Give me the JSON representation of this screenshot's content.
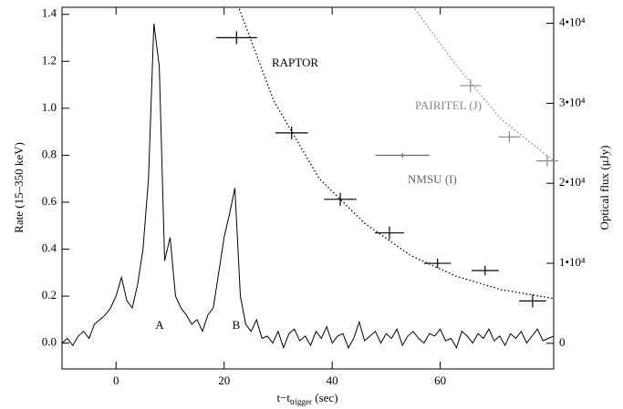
{
  "chart_data": {
    "type": "line",
    "xlabel": {
      "main": "t−t",
      "sub": "trigger",
      "unit": " (sec)"
    },
    "ylabel": "Rate (15–350 keV)",
    "y2label": "Optical flux (μJy)",
    "xlim": [
      -10,
      81
    ],
    "ylim": [
      -0.11,
      1.43
    ],
    "y2lim": [
      -3200,
      42000
    ],
    "xticks": [
      0,
      20,
      40,
      60
    ],
    "yticks": [
      {
        "value": 0,
        "label": "0.0"
      },
      0.2,
      0.4,
      0.6,
      0.8,
      {
        "value": 1,
        "label": "1.0"
      },
      1.2,
      1.4
    ],
    "y2ticks": [
      0,
      {
        "value": 10000,
        "label": "1•10⁴"
      },
      {
        "value": 20000,
        "label": "2•10⁴"
      },
      {
        "value": 30000,
        "label": "3•10⁴"
      },
      {
        "value": 40000,
        "label": "4•10⁴"
      }
    ],
    "annotations": [
      "A",
      "B"
    ],
    "lightcurve": {
      "color": "#000000",
      "x": [
        -10,
        -9,
        -8,
        -7,
        -6,
        -5,
        -4,
        -3,
        -2,
        -1,
        0,
        1,
        2,
        3,
        4,
        5,
        6,
        7,
        8,
        9,
        10,
        11,
        12,
        13,
        14,
        15,
        16,
        17,
        18,
        19,
        20,
        21,
        22,
        23,
        24,
        25,
        26,
        27,
        28,
        29,
        30,
        31,
        32,
        33,
        34,
        35,
        36,
        37,
        38,
        39,
        40,
        41,
        42,
        43,
        44,
        45,
        46,
        47,
        48,
        49,
        50,
        51,
        52,
        53,
        54,
        55,
        56,
        57,
        58,
        59,
        60,
        61,
        62,
        63,
        64,
        65,
        66,
        67,
        68,
        69,
        70,
        71,
        72,
        73,
        74,
        75,
        76,
        77,
        78,
        79,
        80,
        81
      ],
      "values": [
        0.0,
        0.02,
        -0.01,
        0.03,
        0.05,
        0.02,
        0.08,
        0.1,
        0.12,
        0.15,
        0.2,
        0.28,
        0.18,
        0.15,
        0.25,
        0.4,
        0.7,
        1.36,
        1.18,
        0.35,
        0.45,
        0.2,
        0.15,
        0.12,
        0.08,
        0.1,
        0.05,
        0.12,
        0.15,
        0.3,
        0.45,
        0.55,
        0.66,
        0.2,
        0.08,
        0.05,
        0.1,
        0.02,
        0.03,
        0.0,
        0.05,
        -0.02,
        0.04,
        0.06,
        0.01,
        0.03,
        -0.01,
        0.05,
        0.02,
        0.07,
        0.0,
        0.03,
        0.04,
        -0.02,
        0.02,
        0.09,
        0.01,
        0.03,
        0.05,
        0.0,
        0.04,
        0.02,
        0.06,
        -0.01,
        0.03,
        0.05,
        0.02,
        0.0,
        0.04,
        0.03,
        0.06,
        0.01,
        0.02,
        -0.02,
        0.05,
        0.03,
        0.0,
        0.04,
        0.02,
        0.06,
        0.01,
        0.03,
        -0.01,
        0.04,
        0.02,
        0.05,
        0.0,
        0.03,
        0.06,
        0.01,
        0.02,
        0.03
      ]
    },
    "fits": [
      {
        "color": "#000000",
        "x": [
          22.8,
          29.2,
          37.6,
          46,
          54.5,
          62.9,
          71.3,
          81
        ],
        "values": [
          41800,
          30300,
          20600,
          15000,
          11000,
          8400,
          6700,
          5600
        ]
      },
      {
        "color": "#888888",
        "x": [
          55.3,
          62.9,
          71.3,
          81
        ],
        "values": [
          41800,
          34800,
          28000,
          22800
        ]
      }
    ],
    "series": [
      {
        "name": "RAPTOR",
        "color": "#000000",
        "axis": "y2",
        "x": [
          22.3,
          32.5,
          41.5,
          50.6,
          59.5,
          68.3,
          77.1
        ],
        "xerr": [
          3.8,
          3,
          3,
          2.7,
          2.5,
          2.5,
          2.5
        ],
        "values": [
          38200,
          26300,
          18000,
          13800,
          10000,
          9100,
          5300
        ],
        "yerr": [
          800,
          800,
          800,
          800,
          600,
          600,
          800
        ]
      },
      {
        "name": "NMSU (I)",
        "color": "#666666",
        "axis": "y2",
        "x": [
          53
        ],
        "xerr": [
          5
        ],
        "values": [
          23500
        ],
        "yerr": [
          300
        ]
      },
      {
        "name": "PAIRITEL (J)",
        "color": "#888888",
        "axis": "y2",
        "x": [
          65.6,
          72.8,
          79.8
        ],
        "xerr": [
          2,
          2,
          2
        ],
        "values": [
          32200,
          25800,
          22800
        ],
        "yerr": [
          800,
          700,
          700
        ]
      }
    ]
  }
}
